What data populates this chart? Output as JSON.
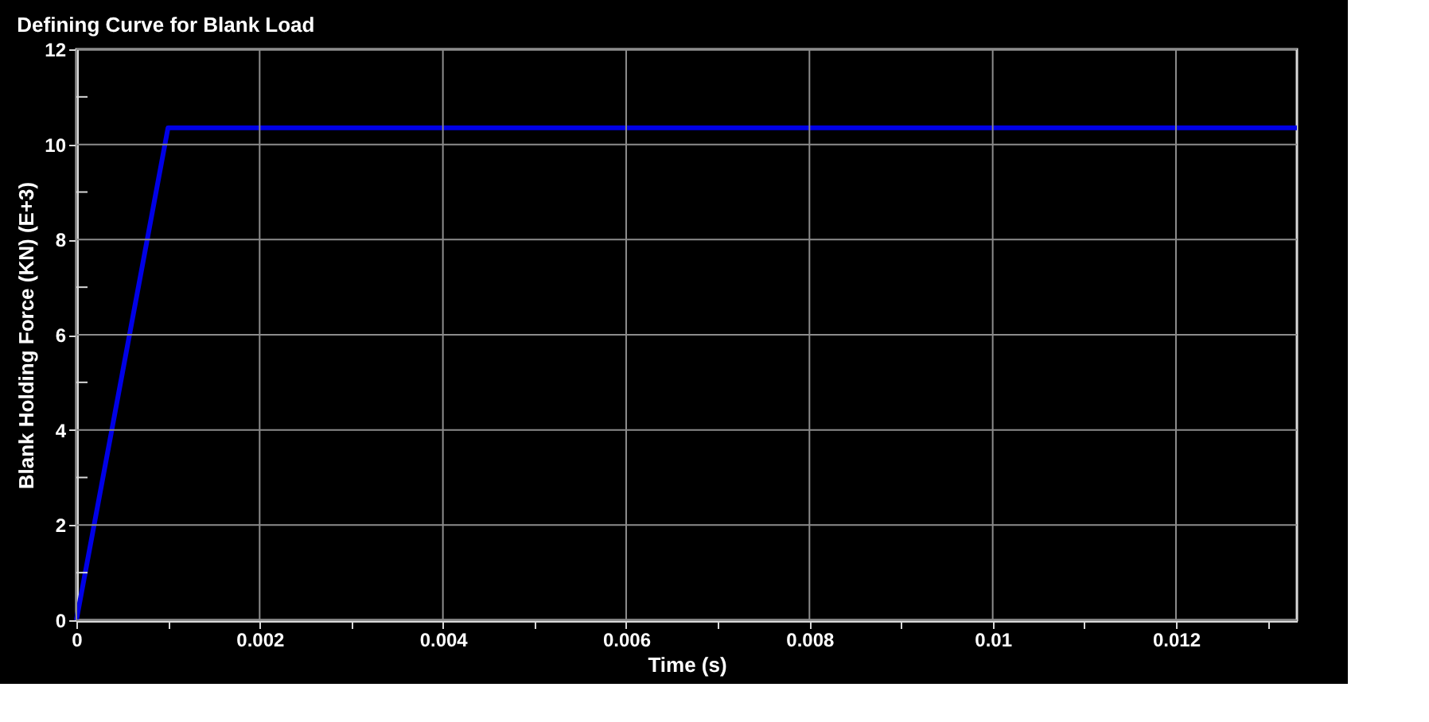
{
  "chart_data": {
    "type": "line",
    "title": "Defining Curve for Blank Load",
    "xlabel": "Time (s)",
    "ylabel": "Blank Holding Force (KN) (E+3)",
    "series": [
      {
        "color": "#0000e6",
        "x": [
          0,
          0.001,
          0.01332
        ],
        "values": [
          0,
          10.35,
          10.35
        ]
      }
    ],
    "xlim": [
      0,
      0.01332
    ],
    "ylim": [
      0,
      12
    ],
    "xticks": [
      0,
      {
        "value": 0.001,
        "label": null
      },
      0.002,
      {
        "value": 0.003,
        "label": null
      },
      0.004,
      {
        "value": 0.005,
        "label": null
      },
      0.006,
      {
        "value": 0.007,
        "label": null
      },
      0.008,
      {
        "value": 0.009,
        "label": null
      },
      0.01,
      {
        "value": 0.011,
        "label": null
      },
      0.012,
      {
        "value": 0.013,
        "label": null
      }
    ],
    "yticks": [
      0,
      {
        "value": 1,
        "label": null
      },
      2,
      {
        "value": 3,
        "label": null
      },
      4,
      {
        "value": 5,
        "label": null
      },
      6,
      {
        "value": 7,
        "label": null
      },
      8,
      {
        "value": 9,
        "label": null
      },
      10,
      {
        "value": 11,
        "label": null
      },
      12
    ],
    "grid": true,
    "marker": "none",
    "line_style": "solid"
  }
}
